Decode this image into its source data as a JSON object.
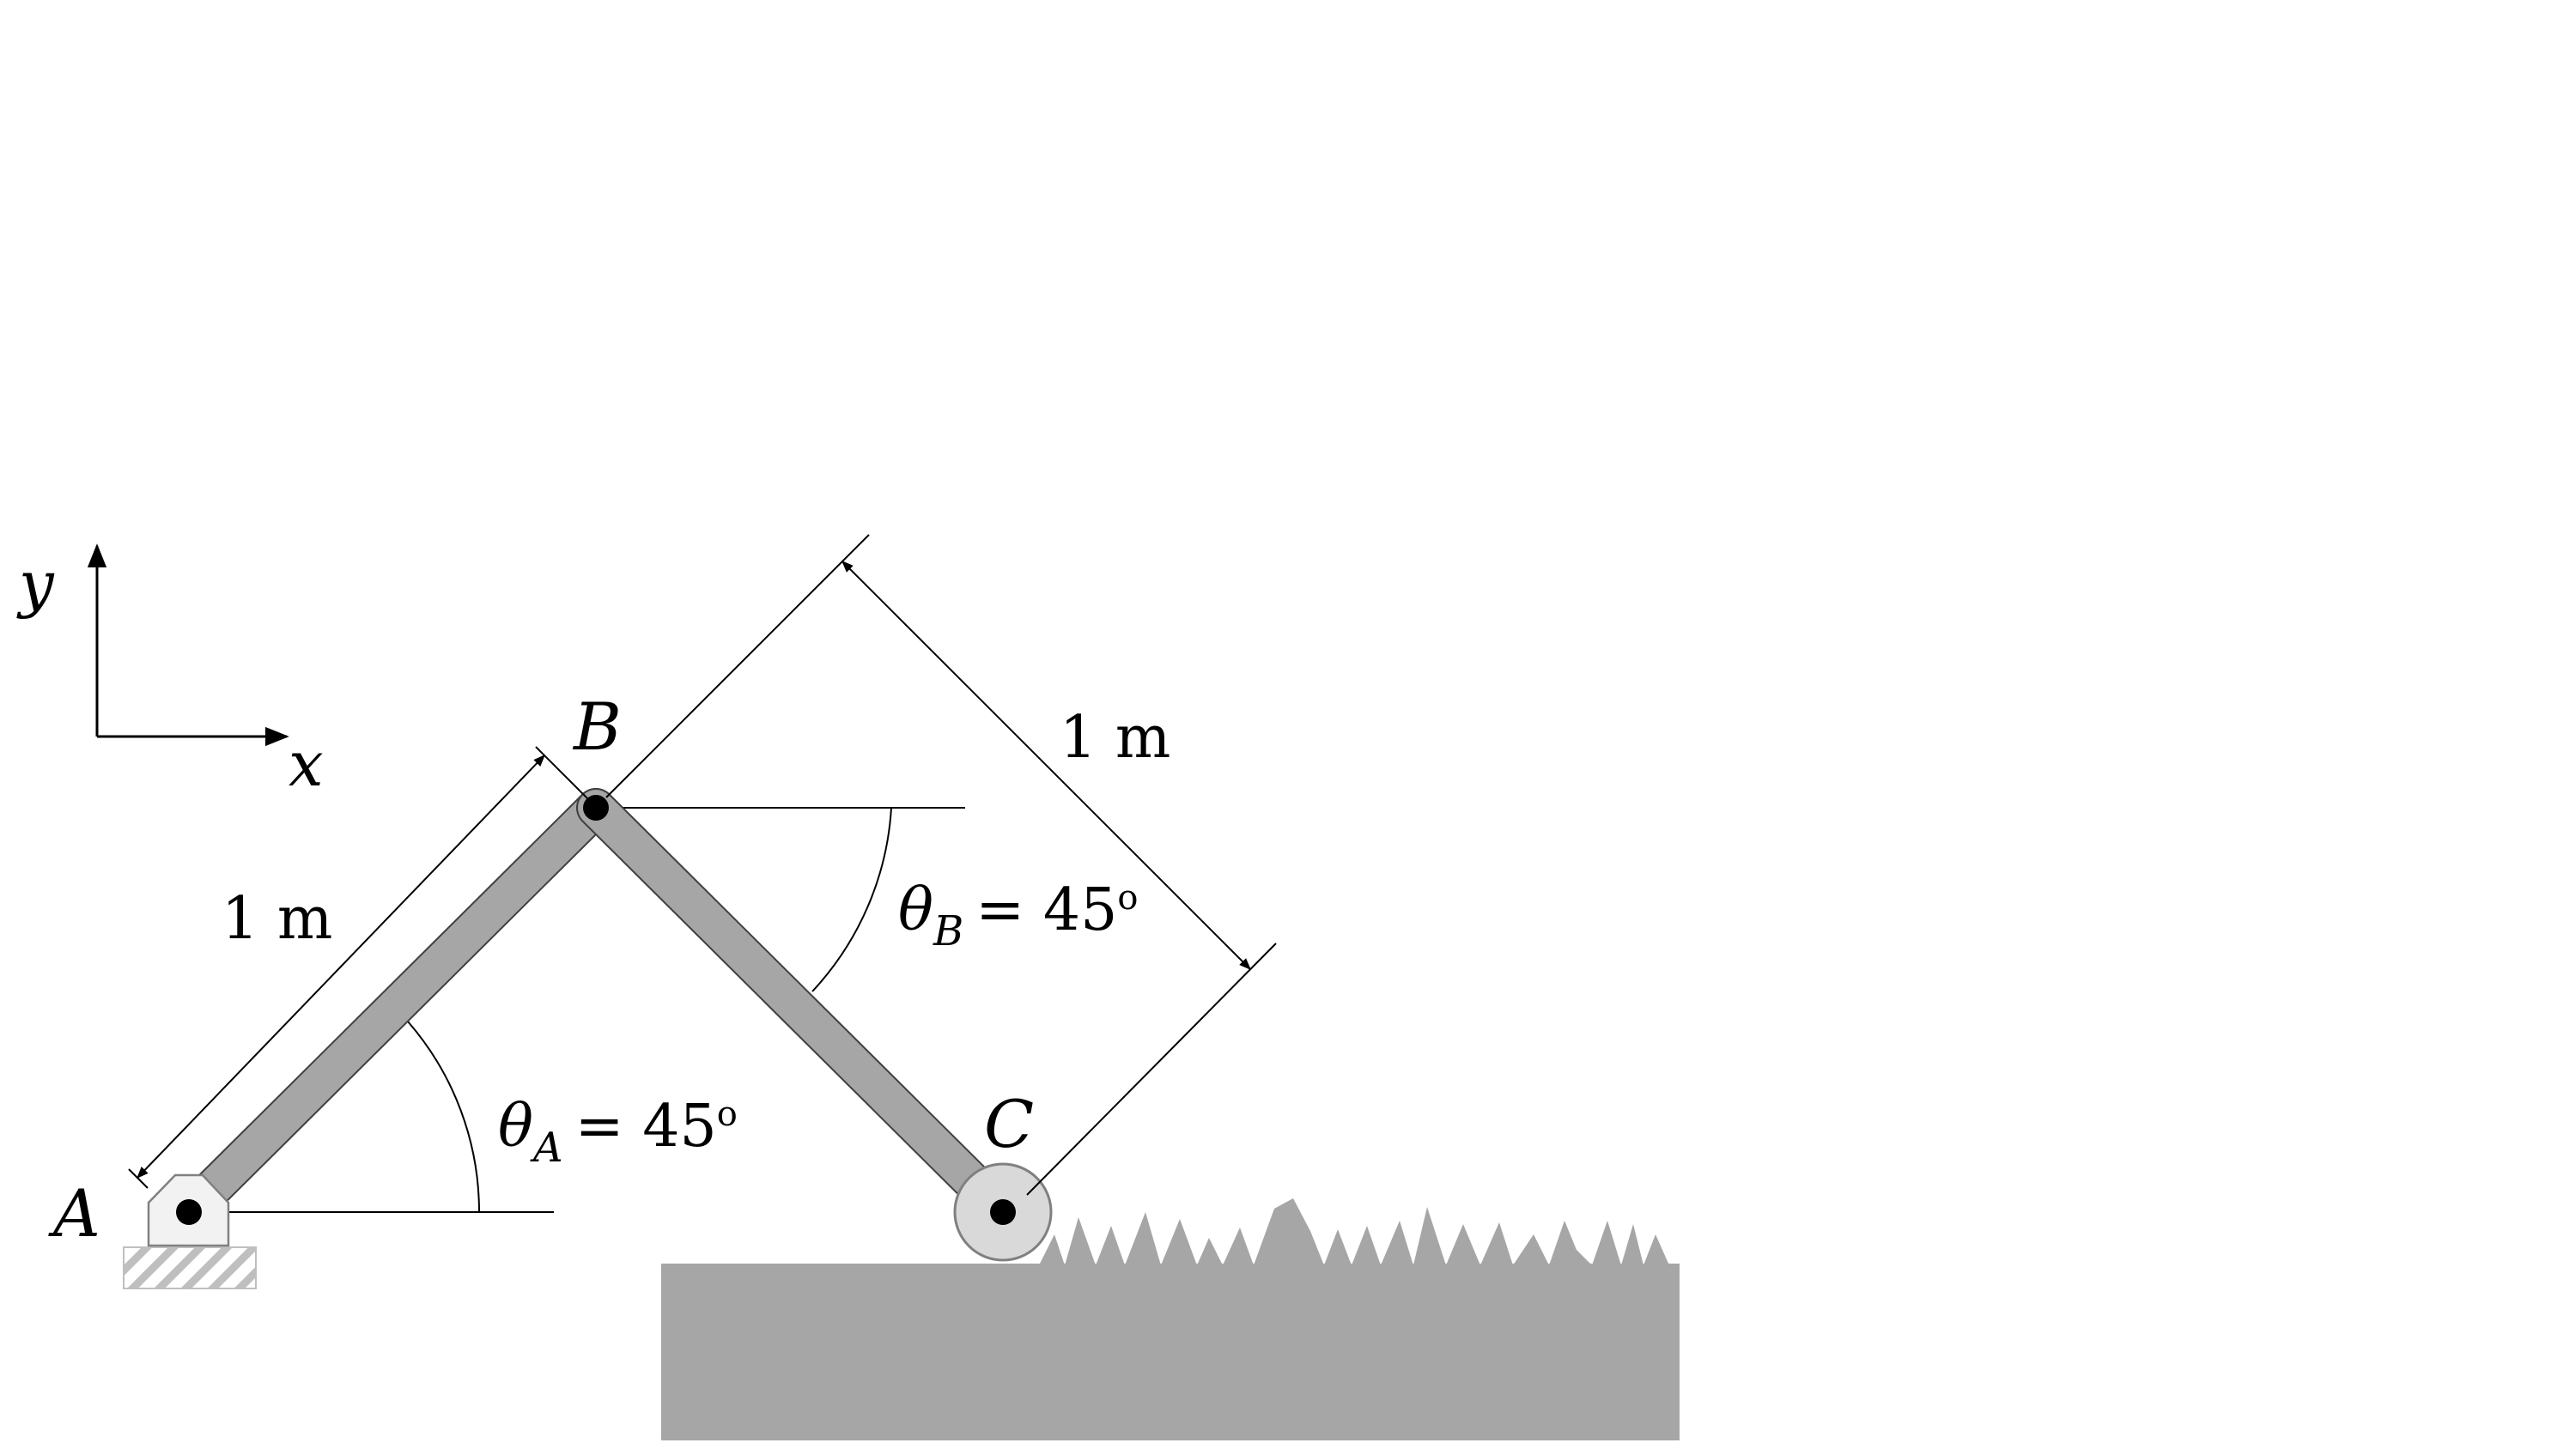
{
  "axes": {
    "x_label": "x",
    "y_label": "y"
  },
  "points": {
    "a": "A",
    "b": "B",
    "c": "C"
  },
  "dimensions": {
    "ab_length": "1 m",
    "bc_length": "1 m"
  },
  "angles": {
    "a": {
      "symbol": "θ",
      "subscript": "A",
      "value": "= 45",
      "unit": "o"
    },
    "b": {
      "symbol": "θ",
      "subscript": "B",
      "value": "= 45",
      "unit": "o"
    }
  },
  "colors": {
    "link": "#a6a6a6",
    "ground": "#a6a6a6",
    "roller": "#d9d9d9",
    "support": "#f2f2f2",
    "line": "#000000"
  }
}
